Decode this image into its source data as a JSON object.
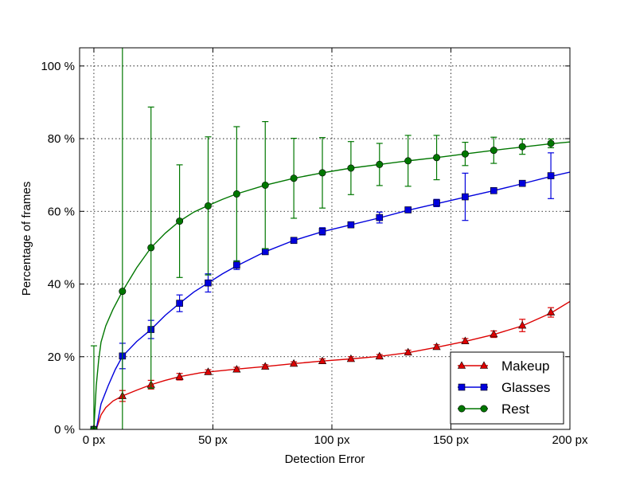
{
  "chart_data": {
    "type": "line",
    "xlabel": "Detection Error",
    "ylabel": "Percentage of frames",
    "xlim": [
      -6,
      200
    ],
    "ylim": [
      0,
      105
    ],
    "x_ticks": [
      0,
      50,
      100,
      150,
      200
    ],
    "x_tick_labels": [
      "0 px",
      "50 px",
      "100 px",
      "150 px",
      "200 px"
    ],
    "y_ticks": [
      0,
      20,
      40,
      60,
      80,
      100
    ],
    "y_tick_labels": [
      "0 %",
      "20 %",
      "40 %",
      "60 %",
      "80 %",
      "100 %"
    ],
    "grid": true,
    "legend_position": "lower-right",
    "series": [
      {
        "name": "Makeup",
        "color": "#dd0000",
        "marker": "triangle",
        "curve": [
          [
            1,
            0
          ],
          [
            3,
            4
          ],
          [
            5,
            6
          ],
          [
            8,
            7.8
          ],
          [
            12,
            9.2
          ],
          [
            18,
            10.8
          ],
          [
            24,
            12.3
          ],
          [
            30,
            13.5
          ],
          [
            36,
            14.5
          ],
          [
            45,
            15.6
          ],
          [
            60,
            16.6
          ],
          [
            72,
            17.3
          ],
          [
            84,
            18.1
          ],
          [
            96,
            18.8
          ],
          [
            108,
            19.4
          ],
          [
            120,
            20.1
          ],
          [
            132,
            21.1
          ],
          [
            144,
            22.6
          ],
          [
            156,
            24.2
          ],
          [
            168,
            26.1
          ],
          [
            180,
            28.5
          ],
          [
            192,
            32.0
          ],
          [
            200,
            35.2
          ]
        ],
        "points": [
          {
            "x": 0,
            "y": 0,
            "err": 0
          },
          {
            "x": 12,
            "y": 9.2,
            "err": 1.5
          },
          {
            "x": 24,
            "y": 12.3,
            "err": 1.2
          },
          {
            "x": 36,
            "y": 14.5,
            "err": 0.9
          },
          {
            "x": 48,
            "y": 15.8,
            "err": 0.6
          },
          {
            "x": 60,
            "y": 16.5,
            "err": 0.6
          },
          {
            "x": 72,
            "y": 17.3,
            "err": 0.5
          },
          {
            "x": 84,
            "y": 18.1,
            "err": 0.5
          },
          {
            "x": 96,
            "y": 18.8,
            "err": 0.6
          },
          {
            "x": 108,
            "y": 19.4,
            "err": 0.6
          },
          {
            "x": 120,
            "y": 20.1,
            "err": 0.5
          },
          {
            "x": 132,
            "y": 21.2,
            "err": 0.6
          },
          {
            "x": 144,
            "y": 22.7,
            "err": 0.6
          },
          {
            "x": 156,
            "y": 24.3,
            "err": 0.7
          },
          {
            "x": 168,
            "y": 26.2,
            "err": 0.9
          },
          {
            "x": 180,
            "y": 28.6,
            "err": 1.7
          },
          {
            "x": 192,
            "y": 32.2,
            "err": 1.3
          }
        ]
      },
      {
        "name": "Glasses",
        "color": "#0000dd",
        "marker": "square",
        "curve": [
          [
            1,
            0
          ],
          [
            3,
            7
          ],
          [
            6,
            12
          ],
          [
            9,
            16.5
          ],
          [
            12,
            20.1
          ],
          [
            18,
            24.2
          ],
          [
            24,
            27.5
          ],
          [
            30,
            31.4
          ],
          [
            36,
            34.7
          ],
          [
            42,
            37.8
          ],
          [
            48,
            40.3
          ],
          [
            54,
            42.8
          ],
          [
            60,
            45.0
          ],
          [
            72,
            48.9
          ],
          [
            84,
            52.0
          ],
          [
            96,
            54.4
          ],
          [
            108,
            56.3
          ],
          [
            120,
            58.2
          ],
          [
            132,
            60.3
          ],
          [
            144,
            62.1
          ],
          [
            156,
            63.9
          ],
          [
            168,
            65.7
          ],
          [
            180,
            67.6
          ],
          [
            192,
            69.6
          ],
          [
            200,
            70.8
          ]
        ],
        "points": [
          {
            "x": 0,
            "y": 0,
            "err": 0
          },
          {
            "x": 12,
            "y": 20.2,
            "err": 3.5
          },
          {
            "x": 24,
            "y": 27.5,
            "err": 2.5
          },
          {
            "x": 36,
            "y": 34.7,
            "err": 2.3
          },
          {
            "x": 48,
            "y": 40.3,
            "err": 2.5
          },
          {
            "x": 60,
            "y": 45.2,
            "err": 1.2
          },
          {
            "x": 72,
            "y": 48.9,
            "err": 0.5
          },
          {
            "x": 84,
            "y": 52.0,
            "err": 0.5
          },
          {
            "x": 96,
            "y": 54.5,
            "err": 1.0
          },
          {
            "x": 108,
            "y": 56.3,
            "err": 0.6
          },
          {
            "x": 120,
            "y": 58.3,
            "err": 1.5
          },
          {
            "x": 132,
            "y": 60.4,
            "err": 0.5
          },
          {
            "x": 144,
            "y": 62.3,
            "err": 1.0
          },
          {
            "x": 156,
            "y": 64.0,
            "err": 6.5
          },
          {
            "x": 168,
            "y": 65.7,
            "err": 0.6
          },
          {
            "x": 180,
            "y": 67.7,
            "err": 0.5
          },
          {
            "x": 192,
            "y": 69.8,
            "err": 6.3
          }
        ]
      },
      {
        "name": "Rest",
        "color": "#007700",
        "marker": "circle",
        "curve": [
          [
            0,
            0
          ],
          [
            1,
            12
          ],
          [
            2,
            19
          ],
          [
            3,
            24
          ],
          [
            5,
            28.5
          ],
          [
            8,
            33
          ],
          [
            12,
            38
          ],
          [
            18,
            44.5
          ],
          [
            24,
            50
          ],
          [
            30,
            54
          ],
          [
            36,
            57.3
          ],
          [
            42,
            59.8
          ],
          [
            48,
            61.6
          ],
          [
            54,
            63.3
          ],
          [
            60,
            64.8
          ],
          [
            72,
            67.2
          ],
          [
            84,
            69.1
          ],
          [
            96,
            70.6
          ],
          [
            108,
            71.9
          ],
          [
            120,
            72.9
          ],
          [
            132,
            73.9
          ],
          [
            144,
            74.8
          ],
          [
            156,
            75.8
          ],
          [
            168,
            76.8
          ],
          [
            180,
            77.7
          ],
          [
            192,
            78.6
          ],
          [
            200,
            79.1
          ]
        ],
        "points": [
          {
            "x": 0,
            "y": 0,
            "err": 23
          },
          {
            "x": 12,
            "y": 38.0,
            "err": 120
          },
          {
            "x": 24,
            "y": 50.0,
            "err": 38.7
          },
          {
            "x": 36,
            "y": 57.3,
            "err": 15.5
          },
          {
            "x": 48,
            "y": 61.5,
            "err": 19.0
          },
          {
            "x": 60,
            "y": 64.8,
            "err": 18.5
          },
          {
            "x": 72,
            "y": 67.2,
            "err": 17.5
          },
          {
            "x": 84,
            "y": 69.1,
            "err": 11.0
          },
          {
            "x": 96,
            "y": 70.6,
            "err": 9.7
          },
          {
            "x": 108,
            "y": 71.9,
            "err": 7.3
          },
          {
            "x": 120,
            "y": 72.9,
            "err": 5.8
          },
          {
            "x": 132,
            "y": 73.9,
            "err": 7.0
          },
          {
            "x": 144,
            "y": 74.8,
            "err": 6.1
          },
          {
            "x": 156,
            "y": 75.8,
            "err": 3.2
          },
          {
            "x": 168,
            "y": 76.8,
            "err": 3.6
          },
          {
            "x": 180,
            "y": 77.8,
            "err": 2.1
          },
          {
            "x": 192,
            "y": 78.7,
            "err": 1.2
          }
        ]
      }
    ]
  }
}
